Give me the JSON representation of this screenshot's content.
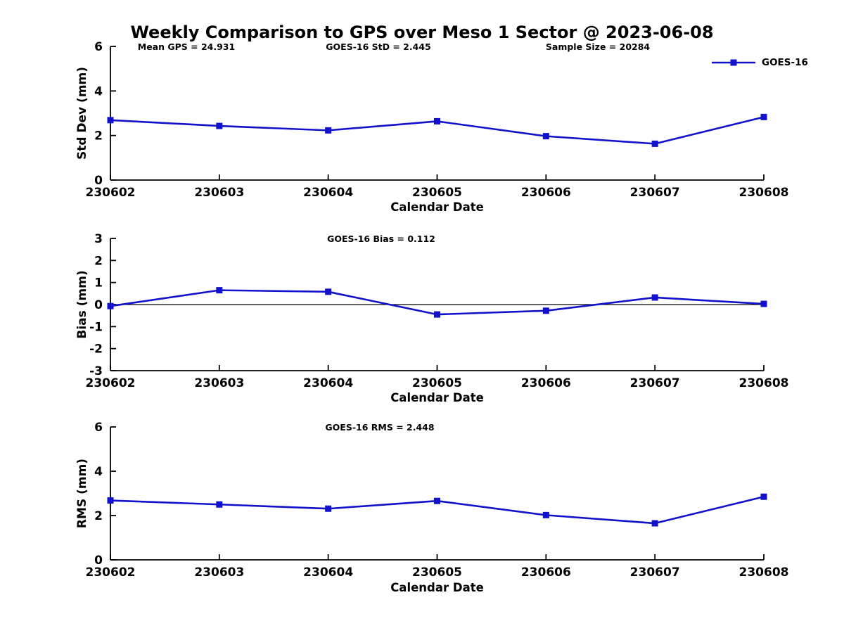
{
  "figure": {
    "title": "Weekly Comparison to GPS over Meso 1 Sector @ 2023-06-08",
    "background": "#ffffff",
    "text_color": "#000000",
    "series_color": "#1212CC",
    "axis_color": "#000000",
    "legend": {
      "label": "GOES-16",
      "position": "top-right",
      "marker": "filled-square",
      "line_color": "#1212CC"
    }
  },
  "chart_data": [
    {
      "type": "line",
      "title": "",
      "xlabel": "Calendar Date",
      "ylabel": "Std Dev (mm)",
      "categories": [
        "230602",
        "230603",
        "230604",
        "230605",
        "230606",
        "230607",
        "230608"
      ],
      "series": [
        {
          "name": "GOES-16",
          "values": [
            2.69,
            2.43,
            2.23,
            2.64,
            1.97,
            1.63,
            2.83
          ]
        }
      ],
      "ylim": [
        0,
        6
      ],
      "yticks": [
        0,
        2,
        4,
        6
      ],
      "grid": false,
      "zero_line": false,
      "annotations": [
        "Mean GPS = 24.931",
        "GOES-16 StD = 2.445",
        "Sample Size = 20284"
      ],
      "legend_entries": [
        "GOES-16"
      ]
    },
    {
      "type": "line",
      "title": "",
      "xlabel": "Calendar Date",
      "ylabel": "Bias (mm)",
      "categories": [
        "230602",
        "230603",
        "230604",
        "230605",
        "230606",
        "230607",
        "230608"
      ],
      "series": [
        {
          "name": "GOES-16",
          "values": [
            -0.07,
            0.65,
            0.58,
            -0.45,
            -0.28,
            0.32,
            0.03
          ]
        }
      ],
      "ylim": [
        -3,
        3
      ],
      "yticks": [
        -3,
        -2,
        -1,
        0,
        1,
        2,
        3
      ],
      "grid": false,
      "zero_line": true,
      "annotations": [
        "GOES-16 Bias  = 0.112"
      ],
      "legend_entries": []
    },
    {
      "type": "line",
      "title": "",
      "xlabel": "Calendar Date",
      "ylabel": "RMS (mm)",
      "categories": [
        "230602",
        "230603",
        "230604",
        "230605",
        "230606",
        "230607",
        "230608"
      ],
      "series": [
        {
          "name": "GOES-16",
          "values": [
            2.68,
            2.5,
            2.31,
            2.66,
            2.02,
            1.65,
            2.85
          ]
        }
      ],
      "ylim": [
        0,
        6
      ],
      "yticks": [
        0,
        2,
        4,
        6
      ],
      "grid": false,
      "zero_line": false,
      "annotations": [
        "GOES-16 RMS = 2.448"
      ],
      "legend_entries": []
    }
  ]
}
